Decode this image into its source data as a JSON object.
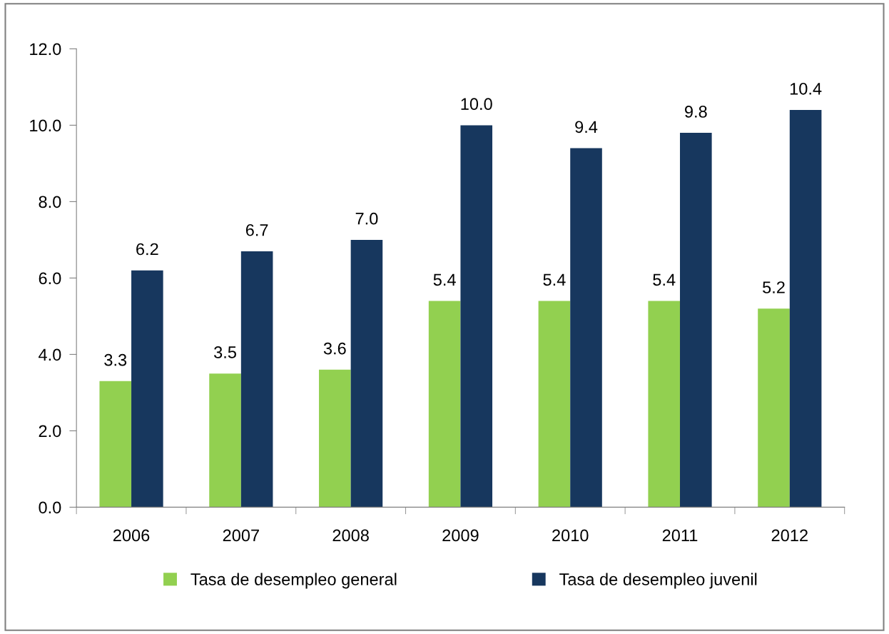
{
  "chart_data": {
    "type": "bar",
    "categories": [
      "2006",
      "2007",
      "2008",
      "2009",
      "2010",
      "2011",
      "2012"
    ],
    "series": [
      {
        "name": "Tasa de desempleo general",
        "color": "#92d050",
        "values": [
          3.3,
          3.5,
          3.6,
          5.4,
          5.4,
          5.4,
          5.2
        ],
        "value_labels": [
          "3.3",
          "3.5",
          "3.6",
          "5.4",
          "5.4",
          "5.4",
          "5.2"
        ]
      },
      {
        "name": "Tasa de desempleo juvenil",
        "color": "#17375e",
        "values": [
          6.2,
          6.7,
          7.0,
          10.0,
          9.4,
          9.8,
          10.4
        ],
        "value_labels": [
          "6.2",
          "6.7",
          "7.0",
          "10.0",
          "9.4",
          "9.8",
          "10.4"
        ]
      }
    ],
    "ylim": [
      0,
      12
    ],
    "yticks": [
      {
        "value": 0,
        "label": "0.0"
      },
      {
        "value": 2,
        "label": "2.0"
      },
      {
        "value": 4,
        "label": "4.0"
      },
      {
        "value": 6,
        "label": "6.0"
      },
      {
        "value": 8,
        "label": "8.0"
      },
      {
        "value": 10,
        "label": "10.0"
      },
      {
        "value": 12,
        "label": "12.0"
      }
    ],
    "grid": false,
    "legend": "bottom"
  }
}
